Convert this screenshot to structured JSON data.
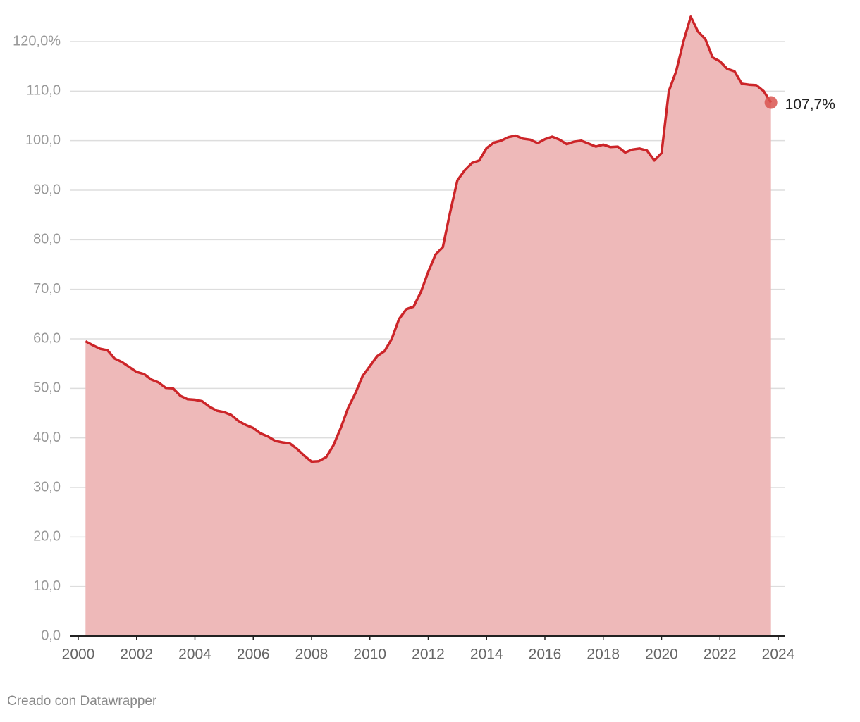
{
  "chart_data": {
    "type": "area",
    "x": [
      2000.25,
      2000.5,
      2000.75,
      2001,
      2001.25,
      2001.5,
      2001.75,
      2002,
      2002.25,
      2002.5,
      2002.75,
      2003,
      2003.25,
      2003.5,
      2003.75,
      2004,
      2004.25,
      2004.5,
      2004.75,
      2005,
      2005.25,
      2005.5,
      2005.75,
      2006,
      2006.25,
      2006.5,
      2006.75,
      2007,
      2007.25,
      2007.5,
      2007.75,
      2008,
      2008.25,
      2008.5,
      2008.75,
      2009,
      2009.25,
      2009.5,
      2009.75,
      2010,
      2010.25,
      2010.5,
      2010.75,
      2011,
      2011.25,
      2011.5,
      2011.75,
      2012,
      2012.25,
      2012.5,
      2012.75,
      2013,
      2013.25,
      2013.5,
      2013.75,
      2014,
      2014.25,
      2014.5,
      2014.75,
      2015,
      2015.25,
      2015.5,
      2015.75,
      2016,
      2016.25,
      2016.5,
      2016.75,
      2017,
      2017.25,
      2017.5,
      2017.75,
      2018,
      2018.25,
      2018.5,
      2018.75,
      2019,
      2019.25,
      2019.5,
      2019.75,
      2020,
      2020.25,
      2020.5,
      2020.75,
      2021,
      2021.25,
      2021.5,
      2021.75,
      2022,
      2022.25,
      2022.5,
      2022.75,
      2023,
      2023.25,
      2023.5,
      2023.75
    ],
    "values": [
      59.5,
      58.7,
      58.0,
      57.7,
      56.0,
      55.3,
      54.3,
      53.3,
      52.9,
      51.8,
      51.2,
      50.1,
      50.0,
      48.5,
      47.8,
      47.7,
      47.4,
      46.3,
      45.5,
      45.2,
      44.6,
      43.4,
      42.6,
      42.0,
      40.9,
      40.3,
      39.4,
      39.1,
      38.9,
      37.8,
      36.4,
      35.2,
      35.3,
      36.1,
      38.5,
      42.0,
      46.0,
      49.0,
      52.5,
      54.5,
      56.5,
      57.5,
      60.0,
      64.0,
      66.0,
      66.5,
      69.5,
      73.5,
      77.0,
      78.5,
      85.5,
      92.0,
      94.0,
      95.5,
      96.0,
      98.5,
      99.6,
      100.0,
      100.7,
      101.0,
      100.4,
      100.2,
      99.5,
      100.3,
      100.8,
      100.2,
      99.3,
      99.8,
      100.0,
      99.4,
      98.8,
      99.2,
      98.7,
      98.8,
      97.6,
      98.2,
      98.4,
      98.0,
      96.0,
      97.5,
      110.0,
      114.0,
      120.0,
      125.0,
      122.0,
      120.5,
      116.8,
      116.0,
      114.5,
      114.0,
      111.5,
      111.3,
      111.2,
      110.0,
      107.7
    ],
    "value_labels": [
      null,
      null,
      null,
      null,
      null,
      null,
      null,
      null,
      null,
      null,
      null,
      null,
      null,
      null,
      null,
      null,
      null,
      null,
      null,
      null,
      null,
      null,
      null,
      null,
      null,
      null,
      null,
      null,
      null,
      null,
      null,
      null,
      null,
      null,
      null,
      null,
      null,
      null,
      null,
      null,
      null,
      null,
      null,
      null,
      null,
      null,
      null,
      null,
      null,
      null,
      null,
      null,
      null,
      null,
      null,
      null,
      null,
      null,
      null,
      null,
      null,
      null,
      null,
      null,
      null,
      null,
      null,
      null,
      null,
      null,
      null,
      null,
      null,
      null,
      null,
      null,
      null,
      null,
      null,
      null,
      null,
      null,
      null,
      null,
      null,
      null,
      null,
      null,
      null,
      null,
      null,
      null,
      null,
      null,
      "107,7%"
    ],
    "color": "#cc2529",
    "area_color": "#eeb9b9",
    "xlim": [
      2000,
      2024
    ],
    "xticks": [
      2000,
      2002,
      2004,
      2006,
      2008,
      2010,
      2012,
      2014,
      2016,
      2018,
      2020,
      2022,
      2024
    ],
    "ylim": [
      0,
      120
    ],
    "yticks": [
      {
        "value": 0,
        "label": "0,0"
      },
      {
        "value": 10,
        "label": "10,0"
      },
      {
        "value": 20,
        "label": "20,0"
      },
      {
        "value": 30,
        "label": "30,0"
      },
      {
        "value": 40,
        "label": "40,0"
      },
      {
        "value": 50,
        "label": "50,0"
      },
      {
        "value": 60,
        "label": "60,0"
      },
      {
        "value": 70,
        "label": "70,0"
      },
      {
        "value": 80,
        "label": "80,0"
      },
      {
        "value": 90,
        "label": "90,0"
      },
      {
        "value": 100,
        "label": "100,0"
      },
      {
        "value": 110,
        "label": "110,0"
      },
      {
        "value": 120,
        "label": "120,0%"
      }
    ],
    "grid": true,
    "credit": "Creado con Datawrapper"
  }
}
